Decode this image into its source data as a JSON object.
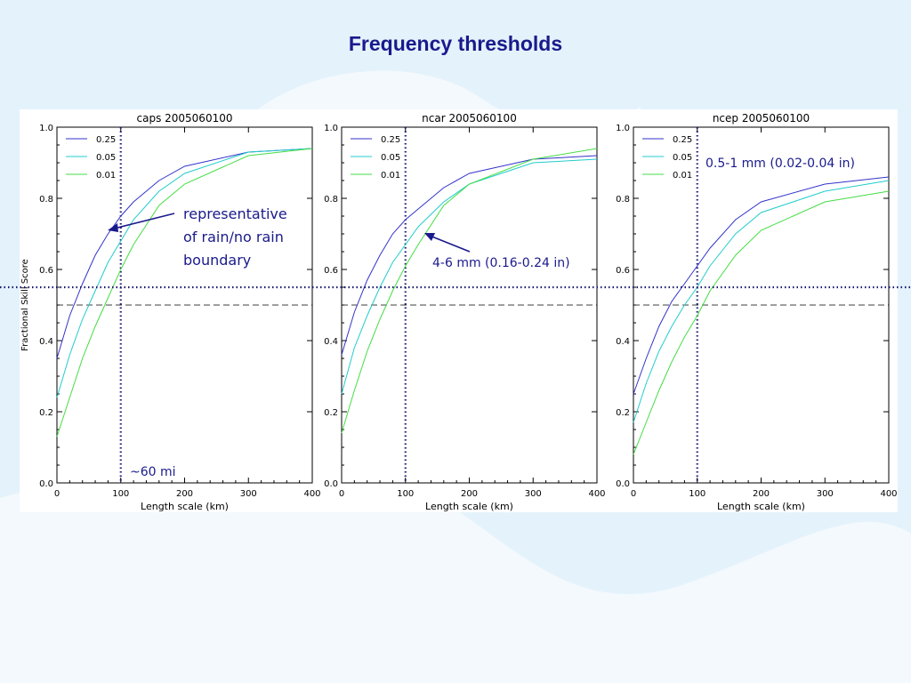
{
  "slide": {
    "title": "Frequency thresholds"
  },
  "chart_data": [
    {
      "type": "line",
      "title": "caps 2005060100",
      "xlabel": "Length scale (km)",
      "ylabel": "Fractional Skill Score",
      "xlim": [
        0,
        400
      ],
      "ylim": [
        0,
        1
      ],
      "xticks": [
        0,
        100,
        200,
        300,
        400
      ],
      "yticks": [
        "0.0",
        "0.2",
        "0.4",
        "0.6",
        "0.8",
        "1.0"
      ],
      "legend_position": "top-left",
      "series": [
        {
          "name": "0.25",
          "color": "#3333cc",
          "x": [
            0,
            20,
            40,
            60,
            80,
            100,
            120,
            160,
            200,
            300,
            400
          ],
          "y": [
            0.35,
            0.47,
            0.56,
            0.64,
            0.7,
            0.75,
            0.79,
            0.85,
            0.89,
            0.93,
            0.94
          ]
        },
        {
          "name": "0.05",
          "color": "#22cccc",
          "x": [
            0,
            20,
            40,
            60,
            80,
            100,
            120,
            160,
            200,
            300,
            400
          ],
          "y": [
            0.24,
            0.36,
            0.46,
            0.54,
            0.62,
            0.68,
            0.74,
            0.82,
            0.87,
            0.93,
            0.94
          ]
        },
        {
          "name": "0.01",
          "color": "#44dd44",
          "x": [
            0,
            20,
            40,
            60,
            80,
            100,
            120,
            160,
            200,
            300,
            400
          ],
          "y": [
            0.13,
            0.24,
            0.35,
            0.44,
            0.52,
            0.6,
            0.67,
            0.78,
            0.84,
            0.92,
            0.94
          ]
        }
      ]
    },
    {
      "type": "line",
      "title": "ncar 2005060100",
      "xlabel": "Length scale (km)",
      "ylabel": "",
      "xlim": [
        0,
        400
      ],
      "ylim": [
        0,
        1
      ],
      "xticks": [
        0,
        100,
        200,
        300,
        400
      ],
      "yticks": [
        "0.0",
        "0.2",
        "0.4",
        "0.6",
        "0.8",
        "1.0"
      ],
      "legend_position": "top-left",
      "series": [
        {
          "name": "0.25",
          "color": "#3333cc",
          "x": [
            0,
            20,
            40,
            60,
            80,
            100,
            120,
            160,
            200,
            300,
            400
          ],
          "y": [
            0.36,
            0.48,
            0.57,
            0.64,
            0.7,
            0.74,
            0.77,
            0.83,
            0.87,
            0.91,
            0.92
          ]
        },
        {
          "name": "0.05",
          "color": "#22cccc",
          "x": [
            0,
            20,
            40,
            60,
            80,
            100,
            120,
            160,
            200,
            300,
            400
          ],
          "y": [
            0.25,
            0.38,
            0.47,
            0.55,
            0.62,
            0.67,
            0.72,
            0.79,
            0.84,
            0.9,
            0.91
          ]
        },
        {
          "name": "0.01",
          "color": "#44dd44",
          "x": [
            0,
            20,
            40,
            60,
            80,
            100,
            120,
            160,
            200,
            300,
            400
          ],
          "y": [
            0.14,
            0.26,
            0.37,
            0.46,
            0.54,
            0.61,
            0.67,
            0.78,
            0.84,
            0.91,
            0.94
          ]
        }
      ]
    },
    {
      "type": "line",
      "title": "ncep 2005060100",
      "xlabel": "Length scale (km)",
      "ylabel": "",
      "xlim": [
        0,
        400
      ],
      "ylim": [
        0,
        1
      ],
      "xticks": [
        0,
        100,
        200,
        300,
        400
      ],
      "yticks": [
        "0.0",
        "0.2",
        "0.4",
        "0.6",
        "0.8",
        "1.0"
      ],
      "legend_position": "top-left",
      "series": [
        {
          "name": "0.25",
          "color": "#3333cc",
          "x": [
            0,
            20,
            40,
            60,
            80,
            100,
            120,
            160,
            200,
            300,
            400
          ],
          "y": [
            0.25,
            0.35,
            0.44,
            0.51,
            0.56,
            0.61,
            0.66,
            0.74,
            0.79,
            0.84,
            0.86
          ]
        },
        {
          "name": "0.05",
          "color": "#22cccc",
          "x": [
            0,
            20,
            40,
            60,
            80,
            100,
            120,
            160,
            200,
            300,
            400
          ],
          "y": [
            0.17,
            0.28,
            0.37,
            0.44,
            0.5,
            0.55,
            0.61,
            0.7,
            0.76,
            0.82,
            0.85
          ]
        },
        {
          "name": "0.01",
          "color": "#44dd44",
          "x": [
            0,
            20,
            40,
            60,
            80,
            100,
            120,
            160,
            200,
            300,
            400
          ],
          "y": [
            0.08,
            0.17,
            0.26,
            0.34,
            0.41,
            0.47,
            0.54,
            0.64,
            0.71,
            0.79,
            0.82
          ]
        }
      ]
    }
  ],
  "reference_lines": {
    "vertical_x": 100,
    "horizontal_dotted_y": 0.55,
    "horizontal_dashed_y": 0.5
  },
  "annotations": {
    "rain_boundary": [
      "representative",
      "of rain/no rain",
      "boundary"
    ],
    "sixty_mi": "~60 mi",
    "ncar_threshold": "4-6 mm (0.16-0.24 in)",
    "ncep_threshold": "0.5-1 mm (0.02-0.04 in)"
  },
  "colors": {
    "title": "#1a1a8c",
    "annotation": "#1a1a8c",
    "reference_dotted": "#1a1a6e",
    "background": "#e4f2fb"
  }
}
